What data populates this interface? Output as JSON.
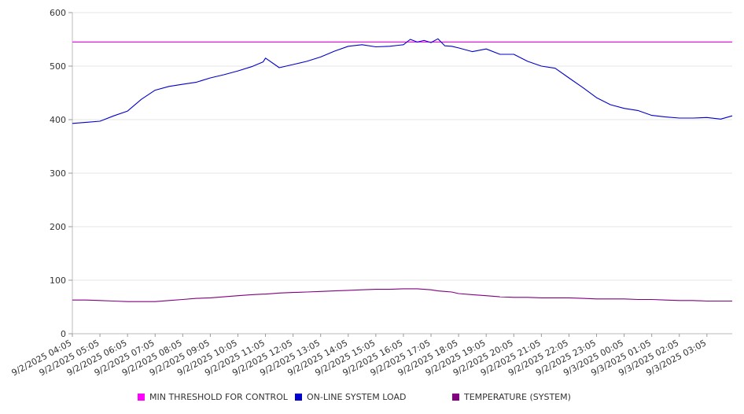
{
  "chart_data": {
    "type": "line",
    "title": "",
    "xlabel": "",
    "ylabel": "",
    "ylim": [
      0,
      600
    ],
    "yticks": [
      0,
      100,
      200,
      300,
      400,
      500,
      600
    ],
    "grid": true,
    "legend_position": "bottom",
    "x_tick_labels": [
      "9/2/2025 04:05",
      "9/2/2025 05:05",
      "9/2/2025 06:05",
      "9/2/2025 07:05",
      "9/2/2025 08:05",
      "9/2/2025 09:05",
      "9/2/2025 10:05",
      "9/2/2025 11:05",
      "9/2/2025 12:05",
      "9/2/2025 13:05",
      "9/2/2025 14:05",
      "9/2/2025 15:05",
      "9/2/2025 16:05",
      "9/2/2025 17:05",
      "9/2/2025 18:05",
      "9/2/2025 19:05",
      "9/2/2025 20:05",
      "9/2/2025 21:05",
      "9/2/2025 22:05",
      "9/2/2025 23:05",
      "9/3/2025 00:05",
      "9/3/2025 01:05",
      "9/3/2025 02:05",
      "9/3/2025 03:05"
    ],
    "x": [
      "9/2/2025 04:05",
      "9/2/2025 04:35",
      "9/2/2025 05:05",
      "9/2/2025 05:35",
      "9/2/2025 06:05",
      "9/2/2025 06:35",
      "9/2/2025 07:05",
      "9/2/2025 07:35",
      "9/2/2025 08:05",
      "9/2/2025 08:35",
      "9/2/2025 09:05",
      "9/2/2025 09:35",
      "9/2/2025 10:05",
      "9/2/2025 10:35",
      "9/2/2025 11:00",
      "9/2/2025 11:05",
      "9/2/2025 11:35",
      "9/2/2025 12:05",
      "9/2/2025 12:35",
      "9/2/2025 13:05",
      "9/2/2025 13:35",
      "9/2/2025 14:05",
      "9/2/2025 14:35",
      "9/2/2025 15:05",
      "9/2/2025 15:35",
      "9/2/2025 16:05",
      "9/2/2025 16:20",
      "9/2/2025 16:35",
      "9/2/2025 16:50",
      "9/2/2025 17:05",
      "9/2/2025 17:20",
      "9/2/2025 17:35",
      "9/2/2025 17:50",
      "9/2/2025 18:05",
      "9/2/2025 18:35",
      "9/2/2025 19:05",
      "9/2/2025 19:35",
      "9/2/2025 20:05",
      "9/2/2025 20:35",
      "9/2/2025 21:05",
      "9/2/2025 21:35",
      "9/2/2025 22:05",
      "9/2/2025 22:35",
      "9/2/2025 23:05",
      "9/2/2025 23:35",
      "9/3/2025 00:05",
      "9/3/2025 00:35",
      "9/3/2025 01:05",
      "9/3/2025 01:35",
      "9/3/2025 02:05",
      "9/3/2025 02:35",
      "9/3/2025 03:05",
      "9/3/2025 03:35",
      "9/3/2025 04:00"
    ],
    "series": [
      {
        "name": "MIN THRESHOLD FOR CONTROL",
        "color": "#ff00ff",
        "values": [
          545,
          545,
          545,
          545,
          545,
          545,
          545,
          545,
          545,
          545,
          545,
          545,
          545,
          545,
          545,
          545,
          545,
          545,
          545,
          545,
          545,
          545,
          545,
          545,
          545,
          545,
          545,
          545,
          545,
          545,
          545,
          545,
          545,
          545,
          545,
          545,
          545,
          545,
          545,
          545,
          545,
          545,
          545,
          545,
          545,
          545,
          545,
          545,
          545,
          545,
          545,
          545,
          545,
          545
        ]
      },
      {
        "name": "ON-LINE SYSTEM LOAD",
        "color": "#0000cc",
        "values": [
          393,
          395,
          397,
          407,
          416,
          438,
          455,
          462,
          466,
          470,
          478,
          484,
          491,
          499,
          508,
          515,
          497,
          503,
          509,
          517,
          528,
          537,
          540,
          536,
          537,
          540,
          550,
          545,
          548,
          544,
          551,
          538,
          537,
          534,
          527,
          532,
          522,
          522,
          509,
          500,
          496,
          478,
          460,
          441,
          428,
          421,
          417,
          408,
          405,
          403,
          403,
          404,
          401,
          407
        ]
      },
      {
        "name": "TEMPERATURE (SYSTEM)",
        "color": "#800080",
        "values": [
          63,
          63,
          62,
          61,
          60,
          60,
          60,
          62,
          64,
          66,
          67,
          69,
          71,
          73,
          74,
          74,
          76,
          77,
          78,
          79,
          80,
          81,
          82,
          83,
          83,
          84,
          84,
          84,
          83,
          82,
          80,
          79,
          78,
          75,
          73,
          71,
          69,
          68,
          68,
          67,
          67,
          67,
          66,
          65,
          65,
          65,
          64,
          64,
          63,
          62,
          62,
          61,
          61,
          61
        ]
      }
    ]
  }
}
